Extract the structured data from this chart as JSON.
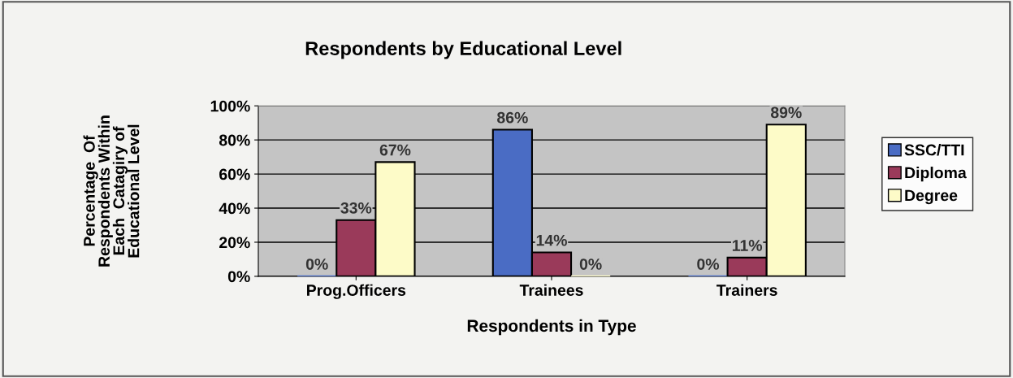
{
  "chart_data": {
    "type": "bar",
    "title": "Respondents by Educational Level",
    "xlabel": "Respondents in Type",
    "ylabel": "Percentage  Of\nRespondents Within\nEach  Catagiry of\nEducational Level",
    "categories": [
      "Prog.Officers",
      "Trainees",
      "Trainers"
    ],
    "series": [
      {
        "name": "SSC/TTI",
        "color": "#4a6cc4",
        "values": [
          0,
          86,
          0
        ],
        "value_labels": [
          "0%",
          "86%",
          "0%"
        ]
      },
      {
        "name": "Diploma",
        "color": "#9a3a5a",
        "values": [
          33,
          14,
          11
        ],
        "value_labels": [
          "33%",
          "14%",
          "11%"
        ]
      },
      {
        "name": "Degree",
        "color": "#fdfbc8",
        "values": [
          67,
          0,
          89
        ],
        "value_labels": [
          "67%",
          "0%",
          "89%"
        ]
      }
    ],
    "ylim": [
      0,
      100
    ],
    "yticks": [
      {
        "value": 0,
        "label": "0%"
      },
      {
        "value": 20,
        "label": "20%"
      },
      {
        "value": 40,
        "label": "40%"
      },
      {
        "value": 60,
        "label": "60%"
      },
      {
        "value": 80,
        "label": "80%"
      },
      {
        "value": 100,
        "label": "100%"
      }
    ],
    "grid": "y",
    "legend": "right"
  }
}
